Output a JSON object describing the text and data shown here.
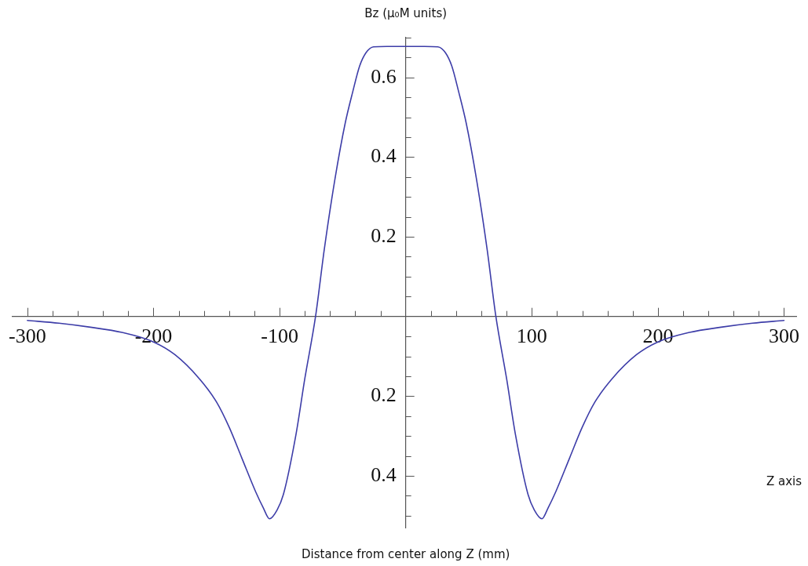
{
  "chart_data": {
    "type": "line",
    "xlabel": "Distance from center along Z (mm)",
    "ylabel": "Bz (μ₀M units)",
    "annotations": [
      "Z axis"
    ],
    "x": [
      -300,
      -275,
      -250,
      -225,
      -200,
      -183,
      -164,
      -150,
      -140,
      -130,
      -119,
      -113,
      -108,
      -102,
      -97,
      -87,
      -80,
      -71.5,
      -64.5,
      -56,
      -48,
      -42,
      -36.5,
      -31.5,
      -25.5,
      -15,
      0,
      15,
      25.5,
      31.5,
      36.5,
      42,
      48,
      56,
      64.5,
      71.5,
      80,
      87,
      97,
      102,
      108,
      113,
      119,
      130,
      140,
      150,
      164,
      183,
      200,
      225,
      250,
      275,
      300
    ],
    "values": [
      -0.01,
      -0.017,
      -0.027,
      -0.04,
      -0.064,
      -0.096,
      -0.155,
      -0.215,
      -0.278,
      -0.355,
      -0.44,
      -0.48,
      -0.508,
      -0.486,
      -0.447,
      -0.296,
      -0.156,
      0,
      0.17,
      0.347,
      0.485,
      0.564,
      0.629,
      0.662,
      0.677,
      0.678,
      0.678,
      0.678,
      0.677,
      0.662,
      0.629,
      0.564,
      0.485,
      0.347,
      0.17,
      0,
      -0.156,
      -0.296,
      -0.447,
      -0.486,
      -0.508,
      -0.48,
      -0.44,
      -0.355,
      -0.278,
      -0.215,
      -0.155,
      -0.096,
      -0.064,
      -0.04,
      -0.027,
      -0.017,
      -0.01
    ],
    "color": "#3d3da8",
    "marker": "none",
    "line_style": "solid",
    "grid": false,
    "xlim": [
      -312,
      310
    ],
    "ylim": [
      -0.53,
      0.7
    ],
    "xticks": [
      -300,
      {
        "value": -280,
        "label": null
      },
      {
        "value": -260,
        "label": null
      },
      {
        "value": -240,
        "label": null
      },
      {
        "value": -220,
        "label": null
      },
      -200,
      {
        "value": -180,
        "label": null
      },
      {
        "value": -160,
        "label": null
      },
      {
        "value": -140,
        "label": null
      },
      {
        "value": -120,
        "label": null
      },
      -100,
      {
        "value": -80,
        "label": null
      },
      {
        "value": -60,
        "label": null
      },
      {
        "value": -40,
        "label": null
      },
      {
        "value": -20,
        "label": null
      },
      {
        "value": 20,
        "label": null
      },
      {
        "value": 40,
        "label": null
      },
      {
        "value": 60,
        "label": null
      },
      {
        "value": 80,
        "label": null
      },
      100,
      {
        "value": 120,
        "label": null
      },
      {
        "value": 140,
        "label": null
      },
      {
        "value": 160,
        "label": null
      },
      {
        "value": 180,
        "label": null
      },
      200,
      {
        "value": 220,
        "label": null
      },
      {
        "value": 240,
        "label": null
      },
      {
        "value": 260,
        "label": null
      },
      {
        "value": 280,
        "label": null
      },
      300
    ],
    "yticks": [
      {
        "value": -0.5,
        "label": null
      },
      {
        "value": -0.45,
        "label": null
      },
      {
        "value": -0.4,
        "label": "0.4"
      },
      {
        "value": -0.35,
        "label": null
      },
      {
        "value": -0.3,
        "label": null
      },
      {
        "value": -0.25,
        "label": null
      },
      {
        "value": -0.2,
        "label": "0.2"
      },
      {
        "value": -0.15,
        "label": null
      },
      {
        "value": -0.1,
        "label": null
      },
      {
        "value": -0.05,
        "label": null
      },
      {
        "value": 0.05,
        "label": null
      },
      {
        "value": 0.1,
        "label": null
      },
      {
        "value": 0.15,
        "label": null
      },
      0.2,
      {
        "value": 0.25,
        "label": null
      },
      {
        "value": 0.3,
        "label": null
      },
      {
        "value": 0.35,
        "label": null
      },
      0.4,
      {
        "value": 0.45,
        "label": null
      },
      {
        "value": 0.5,
        "label": null
      },
      {
        "value": 0.55,
        "label": null
      },
      0.6,
      {
        "value": 0.65,
        "label": null
      },
      {
        "value": 0.7,
        "label": null
      }
    ]
  }
}
